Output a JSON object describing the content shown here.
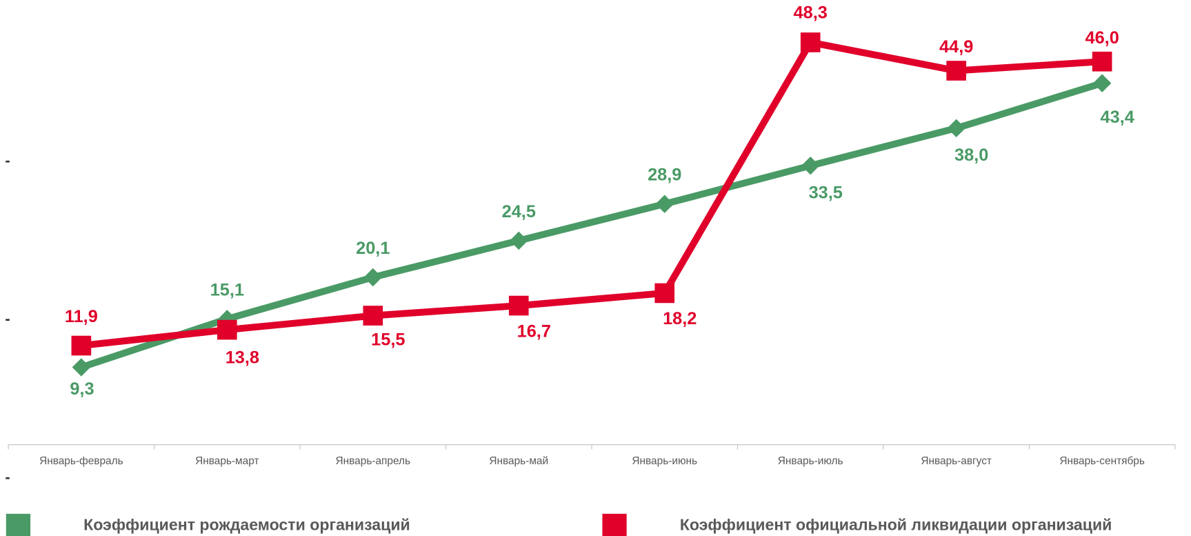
{
  "chart_data": {
    "type": "line",
    "categories": [
      "Январь-февраль",
      "Январь-март",
      "Январь-апрель",
      "Январь-май",
      "Январь-июнь",
      "Январь-июль",
      "Январь-август",
      "Январь-сентябрь"
    ],
    "series": [
      {
        "name": "Коэффициент рождаемости организаций",
        "color": "#4a9a66",
        "marker": "diamond",
        "values": [
          9.3,
          15.1,
          20.1,
          24.5,
          28.9,
          33.5,
          38.0,
          43.4
        ],
        "value_labels": [
          "9,3",
          "15,1",
          "20,1",
          "24,5",
          "28,9",
          "33,5",
          "38,0",
          "43,4"
        ]
      },
      {
        "name": "Коэффициент официальной ликвидации организаций",
        "color": "#e0002a",
        "marker": "square",
        "values": [
          11.9,
          13.8,
          15.5,
          16.7,
          18.2,
          48.3,
          44.9,
          46.0
        ],
        "value_labels": [
          "11,9",
          "13,8",
          "15,5",
          "16,7",
          "18,2",
          "48,3",
          "44,9",
          "46,0"
        ]
      }
    ],
    "ylim": [
      -4,
      53
    ],
    "yticks": [
      {
        "value": -4,
        "label": "-"
      },
      {
        "value": 15,
        "label": "-"
      },
      {
        "value": 34,
        "label": "-"
      }
    ],
    "legend": "bottom"
  }
}
